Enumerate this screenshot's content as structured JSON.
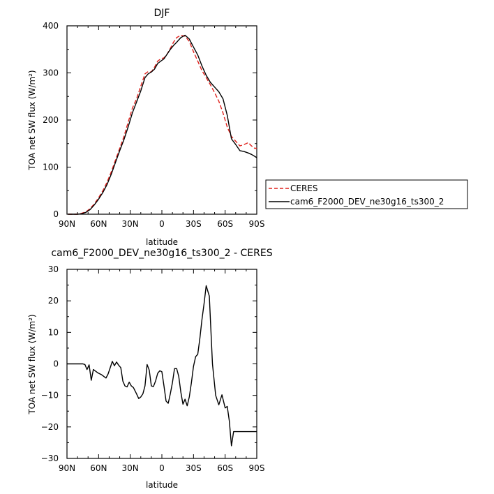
{
  "chart_data": [
    {
      "type": "line",
      "title": "DJF",
      "xlabel": "latitude",
      "ylabel": "TOA net SW flux (W/m²)",
      "xlim": [
        -90,
        90
      ],
      "ylim": [
        0,
        400
      ],
      "x_ticks": [
        -90,
        -60,
        -30,
        0,
        30,
        60,
        90
      ],
      "x_tick_labels": [
        "90N",
        "60N",
        "30N",
        "0",
        "30S",
        "60S",
        "90S"
      ],
      "y_ticks": [
        0,
        100,
        200,
        300,
        400
      ],
      "y_tick_labels": [
        "0",
        "100",
        "200",
        "300",
        "400"
      ],
      "legend_position": "right",
      "series": [
        {
          "name": "CERES",
          "color": "#e0201b",
          "dash": "dashed",
          "x": [
            -89,
            -80,
            -76,
            -72,
            -68,
            -64,
            -60,
            -56,
            -52,
            -48,
            -44,
            -40,
            -36,
            -32,
            -28,
            -24,
            -20,
            -16,
            -13,
            -10,
            -7,
            -4,
            -1,
            2,
            5,
            8,
            11,
            14,
            18,
            22,
            26,
            30,
            34,
            38,
            42,
            46,
            50,
            54,
            58,
            62,
            66,
            70,
            74,
            78,
            82,
            85,
            88,
            90
          ],
          "y": [
            0,
            0,
            2,
            5,
            12,
            22,
            35,
            50,
            68,
            90,
            115,
            140,
            165,
            195,
            225,
            245,
            272,
            298,
            303,
            302,
            312,
            325,
            330,
            332,
            340,
            352,
            365,
            375,
            380,
            378,
            367,
            345,
            325,
            305,
            290,
            275,
            258,
            240,
            215,
            185,
            165,
            155,
            145,
            148,
            152,
            145,
            140,
            140
          ]
        },
        {
          "name": "cam6_F2000_DEV_ne30g16_ts300_2",
          "color": "#000000",
          "dash": "solid",
          "x": [
            -89,
            -80,
            -76,
            -72,
            -68,
            -64,
            -60,
            -56,
            -52,
            -48,
            -44,
            -40,
            -36,
            -32,
            -28,
            -24,
            -20,
            -16,
            -13,
            -10,
            -7,
            -4,
            -1,
            2,
            5,
            8,
            11,
            14,
            18,
            22,
            26,
            30,
            34,
            38,
            42,
            46,
            50,
            54,
            58,
            62,
            66,
            70,
            74,
            78,
            82,
            85,
            88,
            90
          ],
          "y": [
            0,
            0,
            1,
            4,
            10,
            20,
            32,
            46,
            63,
            85,
            110,
            135,
            158,
            185,
            215,
            238,
            262,
            290,
            298,
            302,
            308,
            320,
            325,
            330,
            340,
            350,
            358,
            365,
            375,
            380,
            372,
            355,
            338,
            315,
            295,
            280,
            270,
            260,
            245,
            210,
            160,
            148,
            135,
            133,
            130,
            127,
            123,
            120
          ]
        }
      ]
    },
    {
      "type": "line",
      "title": "cam6_F2000_DEV_ne30g16_ts300_2 - CERES",
      "xlabel": "latitude",
      "ylabel": "TOA net SW flux (W/m²)",
      "xlim": [
        -90,
        90
      ],
      "ylim": [
        -30,
        30
      ],
      "x_ticks": [
        -90,
        -60,
        -30,
        0,
        30,
        60,
        90
      ],
      "x_tick_labels": [
        "90N",
        "60N",
        "30N",
        "0",
        "30S",
        "60S",
        "90S"
      ],
      "y_ticks": [
        -30,
        -20,
        -10,
        0,
        10,
        20,
        30
      ],
      "y_tick_labels": [
        "−30",
        "−20",
        "−10",
        "0",
        "10",
        "20",
        "30"
      ],
      "series": [
        {
          "color": "#000000",
          "dash": "solid",
          "x": [
            -90,
            -75,
            -73,
            -71,
            -69,
            -67,
            -65,
            -61,
            -57,
            -53,
            -51,
            -49,
            -47,
            -45,
            -43,
            -41,
            -39,
            -37,
            -35,
            -33,
            -31,
            -29,
            -27,
            -24,
            -22,
            -20,
            -18,
            -16,
            -14,
            -12,
            -10,
            -8,
            -6,
            -4,
            -2,
            0,
            2,
            4,
            6,
            8,
            10,
            12,
            14,
            16,
            18,
            20,
            22,
            24,
            26,
            28,
            30,
            32,
            34,
            36,
            38,
            40,
            42,
            45,
            48,
            51,
            54,
            57,
            60,
            62,
            64,
            66,
            68,
            70,
            72,
            74,
            76,
            78,
            80,
            82,
            84,
            86,
            88,
            90
          ],
          "y": [
            0,
            0,
            -0.2,
            -1.8,
            -0.3,
            -5.2,
            -1.8,
            -2.8,
            -3.5,
            -4.5,
            -3.2,
            -1.2,
            0.8,
            -0.6,
            0.6,
            -0.4,
            -1.2,
            -5.5,
            -7,
            -7.3,
            -5.8,
            -7,
            -7.5,
            -9.5,
            -11,
            -10.5,
            -9.5,
            -7,
            -0.2,
            -2,
            -7,
            -7.2,
            -5.5,
            -3,
            -2.2,
            -2.5,
            -7,
            -11.8,
            -12.5,
            -9.5,
            -6,
            -1.5,
            -1.5,
            -4,
            -9,
            -12.8,
            -11.2,
            -13.3,
            -10.5,
            -6,
            -0.8,
            2.3,
            3,
            8,
            14,
            19,
            24.8,
            21.5,
            0,
            -10,
            -13,
            -9.8,
            -14,
            -13.5,
            -18.2,
            -26,
            -21.5,
            -21.5,
            -21.5,
            -21.5,
            -21.5,
            -21.5,
            -21.5,
            -21.5,
            -21.5,
            -21.5,
            -21.5,
            -21.5
          ]
        }
      ]
    }
  ],
  "legend": {
    "items": [
      {
        "label": "CERES",
        "color": "#e0201b",
        "dash": "dashed"
      },
      {
        "label": "cam6_F2000_DEV_ne30g16_ts300_2",
        "color": "#000000",
        "dash": "solid"
      }
    ]
  }
}
